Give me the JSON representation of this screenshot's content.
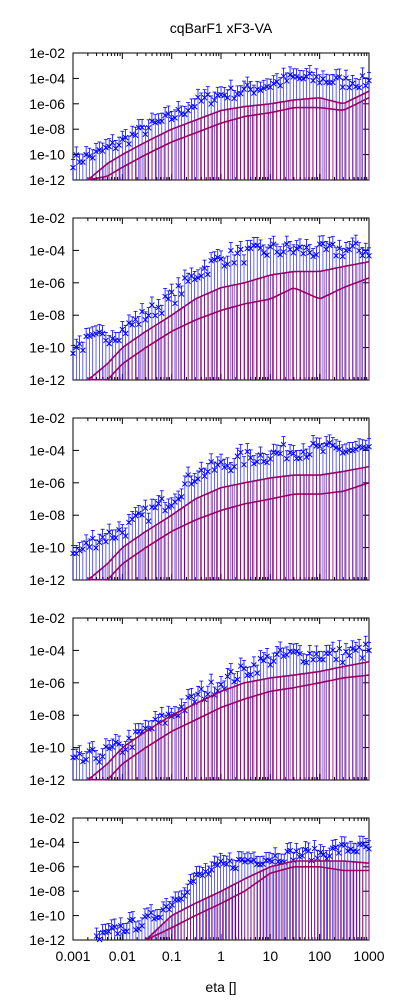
{
  "chart_data": {
    "type": "scatter",
    "title": "cqBarF1 xF3-VA",
    "xlabel": "eta []",
    "x_scale": "log",
    "xlim": [
      0.001,
      1000
    ],
    "x_ticks": [
      "0.001",
      "0.01",
      "0.1",
      "1",
      "10",
      "100",
      "1000"
    ],
    "x_tick_values": [
      0.001,
      0.01,
      0.1,
      1,
      10,
      100,
      1000
    ],
    "y_scale": "log",
    "grid": false,
    "legend": "none",
    "colors": {
      "points": "#0000ff",
      "curves": "#990066",
      "axes": "#000000"
    },
    "panels": [
      {
        "ylim": [
          1e-12,
          0.01
        ],
        "y_ticks": [
          "1e-02",
          "1e-04",
          "1e-06",
          "1e-08",
          "1e-10",
          "1e-12"
        ],
        "y_tick_values": [
          0.01,
          0.0001,
          1e-06,
          1e-08,
          1e-10,
          1e-12
        ],
        "series": [
          {
            "marker": "x-errorbars",
            "x": [
              0.001,
              0.003,
              0.01,
              0.03,
              0.1,
              0.3,
              1,
              3,
              10,
              30,
              100,
              300,
              1000
            ],
            "y": [
              3e-11,
              1e-10,
              1e-09,
              1e-08,
              8e-08,
              1e-06,
              5e-06,
              1e-05,
              3e-05,
              0.0001,
              8e-05,
              5e-05,
              5e-05
            ]
          },
          {
            "marker": "line-errorbars",
            "x": [
              0.002,
              0.005,
              0.01,
              0.03,
              0.1,
              0.3,
              1,
              3,
              10,
              30,
              100,
              300,
              1000
            ],
            "y": [
              1e-12,
              2e-11,
              1e-10,
              1e-09,
              1e-08,
              5e-08,
              3e-07,
              6e-07,
              1e-06,
              2e-06,
              3e-06,
              1e-06,
              1e-05
            ]
          },
          {
            "marker": "line-errorbars",
            "x": [
              0.002,
              0.005,
              0.01,
              0.03,
              0.1,
              0.3,
              1,
              3,
              10,
              30,
              100,
              300,
              1000
            ],
            "y": [
              1e-12,
              2e-12,
              1e-11,
              1e-10,
              1e-09,
              5e-09,
              3e-08,
              1e-07,
              2e-07,
              5e-07,
              5e-07,
              3e-07,
              3e-06
            ]
          }
        ]
      },
      {
        "ylim": [
          1e-12,
          0.01
        ],
        "y_ticks": [
          "1e-02",
          "1e-04",
          "1e-06",
          "1e-08",
          "1e-10",
          "1e-12"
        ],
        "y_tick_values": [
          0.01,
          0.0001,
          1e-06,
          1e-08,
          1e-10,
          1e-12
        ],
        "series": [
          {
            "marker": "x-errorbars",
            "x": [
              0.001,
              0.003,
              0.01,
              0.03,
              0.1,
              0.3,
              1,
              3,
              10,
              30,
              100,
              300,
              1000
            ],
            "y": [
              1e-10,
              3e-10,
              1e-09,
              1e-08,
              1e-07,
              3e-06,
              3e-05,
              5e-05,
              0.0001,
              0.0001,
              8e-05,
              0.0001,
              0.0001
            ]
          },
          {
            "marker": "line-errorbars",
            "x": [
              0.002,
              0.005,
              0.01,
              0.03,
              0.1,
              0.3,
              1,
              3,
              10,
              30,
              100,
              300,
              1000
            ],
            "y": [
              1e-12,
              1e-11,
              1e-10,
              1e-09,
              1e-08,
              1e-07,
              5e-07,
              1e-06,
              3e-06,
              5e-06,
              5e-06,
              1e-05,
              2e-05
            ]
          },
          {
            "marker": "line-errorbars",
            "x": [
              0.002,
              0.005,
              0.01,
              0.03,
              0.1,
              0.3,
              1,
              3,
              10,
              30,
              100,
              300,
              1000
            ],
            "y": [
              1e-12,
              1e-12,
              1e-11,
              1e-10,
              1e-09,
              5e-09,
              2e-08,
              5e-08,
              1e-07,
              5e-07,
              1e-07,
              5e-07,
              2e-06
            ]
          }
        ]
      },
      {
        "ylim": [
          1e-12,
          0.01
        ],
        "y_ticks": [
          "1e-02",
          "1e-04",
          "1e-06",
          "1e-08",
          "1e-10",
          "1e-12"
        ],
        "y_tick_values": [
          0.01,
          0.0001,
          1e-06,
          1e-08,
          1e-10,
          1e-12
        ],
        "series": [
          {
            "marker": "x-errorbars",
            "x": [
              0.001,
              0.003,
              0.01,
              0.03,
              0.1,
              0.3,
              1,
              3,
              10,
              30,
              100,
              300,
              1000
            ],
            "y": [
              3e-11,
              3e-10,
              1e-09,
              1e-08,
              1e-07,
              3e-06,
              1e-05,
              3e-05,
              5e-05,
              0.0001,
              0.0001,
              0.0001,
              0.0001
            ]
          },
          {
            "marker": "line-errorbars",
            "x": [
              0.002,
              0.005,
              0.01,
              0.03,
              0.1,
              0.3,
              1,
              3,
              10,
              30,
              100,
              300,
              1000
            ],
            "y": [
              1e-12,
              1e-11,
              1e-10,
              1e-09,
              1e-08,
              1e-07,
              5e-07,
              1e-06,
              2e-06,
              3e-06,
              3e-06,
              5e-06,
              1e-05
            ]
          },
          {
            "marker": "line-errorbars",
            "x": [
              0.002,
              0.005,
              0.01,
              0.03,
              0.1,
              0.3,
              1,
              3,
              10,
              30,
              100,
              300,
              1000
            ],
            "y": [
              1e-12,
              1e-12,
              1e-11,
              1e-10,
              1e-09,
              5e-09,
              2e-08,
              5e-08,
              1e-07,
              2e-07,
              2e-07,
              3e-07,
              1e-06
            ]
          }
        ]
      },
      {
        "ylim": [
          1e-12,
          0.01
        ],
        "y_ticks": [
          "1e-02",
          "1e-04",
          "1e-06",
          "1e-08",
          "1e-10",
          "1e-12"
        ],
        "y_tick_values": [
          0.01,
          0.0001,
          1e-06,
          1e-08,
          1e-10,
          1e-12
        ],
        "series": [
          {
            "marker": "x-errorbars",
            "x": [
              0.001,
              0.003,
              0.01,
              0.03,
              0.1,
              0.3,
              1,
              3,
              10,
              30,
              100,
              300,
              1000
            ],
            "y": [
              1e-11,
              3e-11,
              1e-10,
              1e-09,
              1e-08,
              1e-07,
              1e-06,
              5e-06,
              3e-05,
              5e-05,
              5e-05,
              5e-05,
              0.0001
            ]
          },
          {
            "marker": "line-errorbars",
            "x": [
              0.002,
              0.005,
              0.01,
              0.03,
              0.1,
              0.3,
              1,
              3,
              10,
              30,
              100,
              300,
              1000
            ],
            "y": [
              1e-12,
              1e-11,
              1e-10,
              1e-09,
              1e-08,
              5e-08,
              3e-07,
              1e-06,
              2e-06,
              3e-06,
              5e-06,
              1e-05,
              2e-05
            ]
          },
          {
            "marker": "line-errorbars",
            "x": [
              0.002,
              0.005,
              0.01,
              0.03,
              0.1,
              0.3,
              1,
              3,
              10,
              30,
              100,
              300,
              1000
            ],
            "y": [
              1e-12,
              1e-12,
              1e-11,
              1e-10,
              1e-09,
              5e-09,
              3e-08,
              1e-07,
              3e-07,
              5e-07,
              1e-06,
              2e-06,
              3e-06
            ]
          }
        ]
      },
      {
        "ylim": [
          1e-12,
          0.01
        ],
        "y_ticks": [
          "1e-02",
          "1e-04",
          "1e-06",
          "1e-08",
          "1e-10",
          "1e-12"
        ],
        "y_tick_values": [
          0.01,
          0.0001,
          1e-06,
          1e-08,
          1e-10,
          1e-12
        ],
        "series": [
          {
            "marker": "x-errorbars",
            "x": [
              0.003,
              0.01,
              0.03,
              0.1,
              0.3,
              1,
              3,
              10,
              30,
              100,
              300,
              1000
            ],
            "y": [
              1e-12,
              1e-11,
              3e-11,
              1e-09,
              1e-07,
              1e-06,
              3e-06,
              5e-06,
              1e-05,
              1e-05,
              3e-05,
              3e-05
            ]
          },
          {
            "marker": "line-errorbars",
            "x": [
              0.03,
              0.1,
              0.3,
              1,
              3,
              10,
              30,
              100,
              300,
              1000
            ],
            "y": [
              1e-12,
              1e-10,
              1e-09,
              1e-08,
              1e-07,
              1e-06,
              3e-06,
              3e-06,
              3e-06,
              2e-06
            ]
          },
          {
            "marker": "line-errorbars",
            "x": [
              0.03,
              0.1,
              0.3,
              1,
              3,
              10,
              30,
              100,
              300,
              1000
            ],
            "y": [
              1e-12,
              1e-11,
              1e-10,
              1e-09,
              1e-08,
              3e-07,
              1e-06,
              1e-06,
              5e-07,
              5e-07
            ]
          }
        ]
      }
    ]
  }
}
